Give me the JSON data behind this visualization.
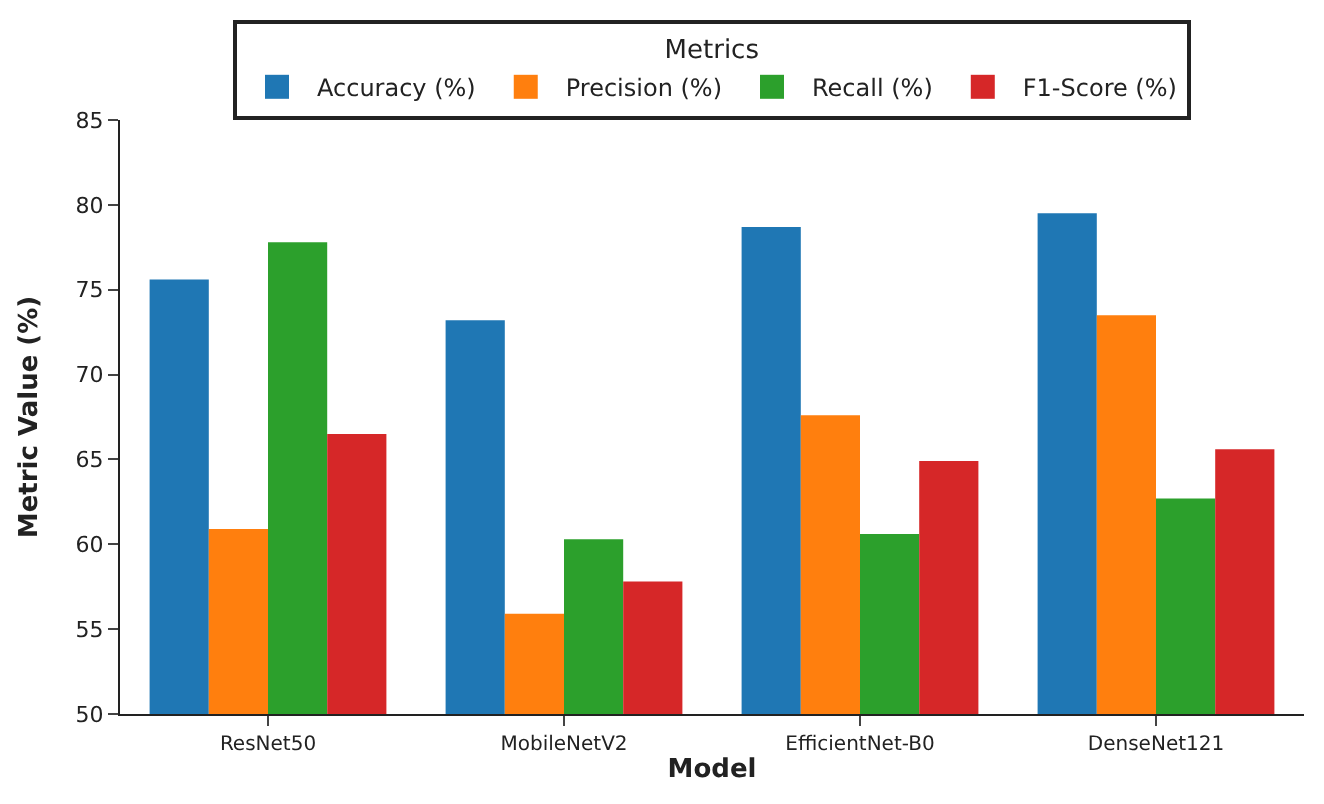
{
  "chart_data": {
    "type": "bar",
    "xlabel": "Model",
    "ylabel": "Metric Value (%)",
    "legend_title": "Metrics",
    "legend": "top",
    "categories": [
      "ResNet50",
      "MobileNetV2",
      "EfficientNet-B0",
      "DenseNet121"
    ],
    "ylim": [
      50,
      85
    ],
    "yticks": [
      50,
      55,
      60,
      65,
      70,
      75,
      80,
      85
    ],
    "series": [
      {
        "name": "Accuracy (%)",
        "color": "#1f77b4",
        "values": [
          75.6,
          73.2,
          78.7,
          79.5
        ]
      },
      {
        "name": "Precision (%)",
        "color": "#ff7f0e",
        "values": [
          60.9,
          55.9,
          67.6,
          73.5
        ]
      },
      {
        "name": "Recall (%)",
        "color": "#2ca02c",
        "values": [
          77.8,
          60.3,
          60.6,
          62.7
        ]
      },
      {
        "name": "F1-Score (%)",
        "color": "#d62728",
        "values": [
          66.5,
          57.8,
          64.9,
          65.6
        ]
      }
    ]
  }
}
